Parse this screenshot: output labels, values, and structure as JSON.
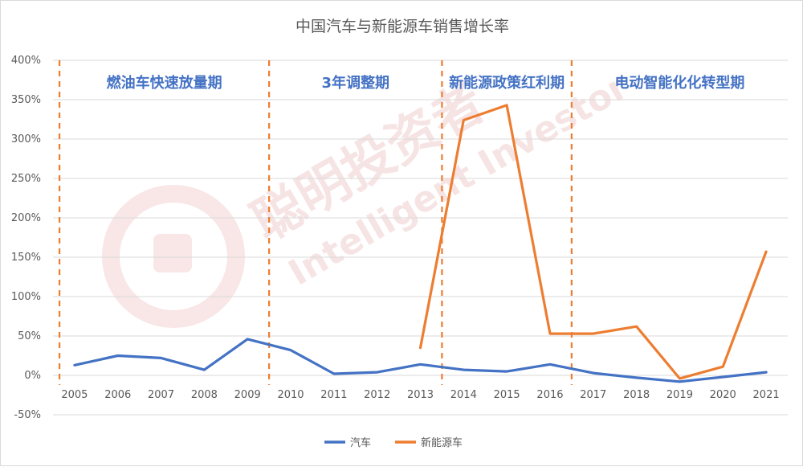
{
  "chart_data": {
    "type": "line",
    "title": "中国汽车与新能源车销售增长率",
    "xlabel": "",
    "ylabel": "",
    "x": [
      "2005",
      "2006",
      "2007",
      "2008",
      "2009",
      "2010",
      "2011",
      "2012",
      "2013",
      "2014",
      "2015",
      "2016",
      "2017",
      "2018",
      "2019",
      "2020",
      "2021"
    ],
    "y_ticks": [
      "400%",
      "350%",
      "300%",
      "250%",
      "200%",
      "150%",
      "100%",
      "50%",
      "0%",
      "-50%"
    ],
    "ylim": [
      -50,
      400
    ],
    "series": [
      {
        "name": "汽车",
        "color": "#4472c4",
        "values": [
          13,
          25,
          22,
          7,
          46,
          32,
          2,
          4,
          14,
          7,
          5,
          14,
          3,
          -3,
          -8,
          -2,
          4
        ]
      },
      {
        "name": "新能源车",
        "color": "#ed7d31",
        "values": [
          null,
          null,
          null,
          null,
          null,
          null,
          null,
          null,
          35,
          324,
          343,
          53,
          53,
          62,
          -4,
          11,
          157
        ]
      }
    ],
    "phases": [
      {
        "label": "燃油车快速放量期"
      },
      {
        "label": "3年调整期"
      },
      {
        "label": "新能源政策红利期"
      },
      {
        "label": "电动智能化化转型期"
      }
    ],
    "phase_boundaries": [
      "2005",
      "2009/2010",
      "2013/2014",
      "2016/2017"
    ],
    "grid": true,
    "legend": "bottom-center",
    "watermark": {
      "cn": "聪明投资者",
      "en": "Intelligent Investor"
    }
  }
}
